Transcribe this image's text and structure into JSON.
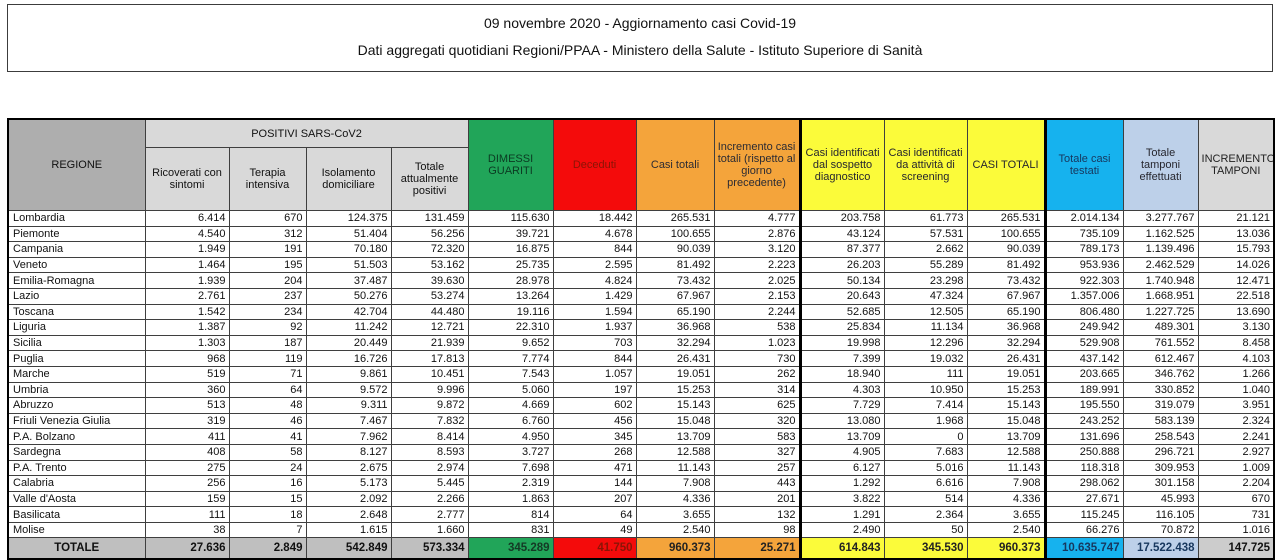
{
  "title": {
    "line1": "09 novembre 2020 - Aggiornamento casi Covid-19",
    "line2": "Dati aggregati quotidiani Regioni/PPAA - Ministero della Salute - Istituto Superiore di Sanità"
  },
  "table": {
    "headers": {
      "regione": "REGIONE",
      "positivi_group": "POSITIVI SARS-CoV2",
      "sub": [
        "Ricoverati con sintomi",
        "Terapia intensiva",
        "Isolamento domiciliare",
        "Totale attualmente positivi"
      ],
      "dimessi_guariti": "DIMESSI GUARITI",
      "deceduti": "Deceduti",
      "casi_totali": "Casi totali",
      "incremento_casi": "Incremento casi totali (rispetto al giorno precedente)",
      "sospetto": "Casi identificati dal sospetto diagnostico",
      "screening": "Casi identificati da attività di screening",
      "casi_totali_caps": "CASI TOTALI",
      "casi_testati": "Totale casi testati",
      "tamponi": "Totale tamponi effettuati",
      "incremento_tamponi": "INCREMENTO TAMPONI"
    },
    "column_ids": [
      "ricoverati-con-sintomi",
      "terapia-intensiva",
      "isolamento-domiciliare",
      "totale-attualmente-positivi",
      "dimessi-guariti",
      "deceduti",
      "casi-totali",
      "incremento-casi-totali",
      "sospetto-diagnostico",
      "screening",
      "casi-totali-complessivi",
      "totale-casi-testati",
      "totale-tamponi",
      "incremento-tamponi"
    ],
    "rows": [
      {
        "region": "Lombardia",
        "values": [
          "6.414",
          "670",
          "124.375",
          "131.459",
          "115.630",
          "18.442",
          "265.531",
          "4.777",
          "203.758",
          "61.773",
          "265.531",
          "2.014.134",
          "3.277.767",
          "21.121"
        ]
      },
      {
        "region": "Piemonte",
        "values": [
          "4.540",
          "312",
          "51.404",
          "56.256",
          "39.721",
          "4.678",
          "100.655",
          "2.876",
          "43.124",
          "57.531",
          "100.655",
          "735.109",
          "1.162.525",
          "13.036"
        ]
      },
      {
        "region": "Campania",
        "values": [
          "1.949",
          "191",
          "70.180",
          "72.320",
          "16.875",
          "844",
          "90.039",
          "3.120",
          "87.377",
          "2.662",
          "90.039",
          "789.173",
          "1.139.496",
          "15.793"
        ]
      },
      {
        "region": "Veneto",
        "values": [
          "1.464",
          "195",
          "51.503",
          "53.162",
          "25.735",
          "2.595",
          "81.492",
          "2.223",
          "26.203",
          "55.289",
          "81.492",
          "953.936",
          "2.462.529",
          "14.026"
        ]
      },
      {
        "region": "Emilia-Romagna",
        "values": [
          "1.939",
          "204",
          "37.487",
          "39.630",
          "28.978",
          "4.824",
          "73.432",
          "2.025",
          "50.134",
          "23.298",
          "73.432",
          "922.303",
          "1.740.948",
          "12.471"
        ]
      },
      {
        "region": "Lazio",
        "values": [
          "2.761",
          "237",
          "50.276",
          "53.274",
          "13.264",
          "1.429",
          "67.967",
          "2.153",
          "20.643",
          "47.324",
          "67.967",
          "1.357.006",
          "1.668.951",
          "22.518"
        ]
      },
      {
        "region": "Toscana",
        "values": [
          "1.542",
          "234",
          "42.704",
          "44.480",
          "19.116",
          "1.594",
          "65.190",
          "2.244",
          "52.685",
          "12.505",
          "65.190",
          "806.480",
          "1.227.725",
          "13.690"
        ]
      },
      {
        "region": "Liguria",
        "values": [
          "1.387",
          "92",
          "11.242",
          "12.721",
          "22.310",
          "1.937",
          "36.968",
          "538",
          "25.834",
          "11.134",
          "36.968",
          "249.942",
          "489.301",
          "3.130"
        ]
      },
      {
        "region": "Sicilia",
        "values": [
          "1.303",
          "187",
          "20.449",
          "21.939",
          "9.652",
          "703",
          "32.294",
          "1.023",
          "19.998",
          "12.296",
          "32.294",
          "529.908",
          "761.552",
          "8.458"
        ]
      },
      {
        "region": "Puglia",
        "values": [
          "968",
          "119",
          "16.726",
          "17.813",
          "7.774",
          "844",
          "26.431",
          "730",
          "7.399",
          "19.032",
          "26.431",
          "437.142",
          "612.467",
          "4.103"
        ]
      },
      {
        "region": "Marche",
        "values": [
          "519",
          "71",
          "9.861",
          "10.451",
          "7.543",
          "1.057",
          "19.051",
          "262",
          "18.940",
          "111",
          "19.051",
          "203.665",
          "346.762",
          "1.266"
        ]
      },
      {
        "region": "Umbria",
        "values": [
          "360",
          "64",
          "9.572",
          "9.996",
          "5.060",
          "197",
          "15.253",
          "314",
          "4.303",
          "10.950",
          "15.253",
          "189.991",
          "330.852",
          "1.040"
        ]
      },
      {
        "region": "Abruzzo",
        "values": [
          "513",
          "48",
          "9.311",
          "9.872",
          "4.669",
          "602",
          "15.143",
          "625",
          "7.729",
          "7.414",
          "15.143",
          "195.550",
          "319.079",
          "3.951"
        ]
      },
      {
        "region": "Friuli Venezia Giulia",
        "values": [
          "319",
          "46",
          "7.467",
          "7.832",
          "6.760",
          "456",
          "15.048",
          "320",
          "13.080",
          "1.968",
          "15.048",
          "243.252",
          "583.139",
          "2.324"
        ]
      },
      {
        "region": "P.A. Bolzano",
        "values": [
          "411",
          "41",
          "7.962",
          "8.414",
          "4.950",
          "345",
          "13.709",
          "583",
          "13.709",
          "0",
          "13.709",
          "131.696",
          "258.543",
          "2.241"
        ]
      },
      {
        "region": "Sardegna",
        "values": [
          "408",
          "58",
          "8.127",
          "8.593",
          "3.727",
          "268",
          "12.588",
          "327",
          "4.905",
          "7.683",
          "12.588",
          "250.888",
          "296.721",
          "2.927"
        ]
      },
      {
        "region": "P.A. Trento",
        "values": [
          "275",
          "24",
          "2.675",
          "2.974",
          "7.698",
          "471",
          "11.143",
          "257",
          "6.127",
          "5.016",
          "11.143",
          "118.318",
          "309.953",
          "1.009"
        ]
      },
      {
        "region": "Calabria",
        "values": [
          "256",
          "16",
          "5.173",
          "5.445",
          "2.319",
          "144",
          "7.908",
          "443",
          "1.292",
          "6.616",
          "7.908",
          "298.062",
          "301.158",
          "2.204"
        ]
      },
      {
        "region": "Valle d'Aosta",
        "values": [
          "159",
          "15",
          "2.092",
          "2.266",
          "1.863",
          "207",
          "4.336",
          "201",
          "3.822",
          "514",
          "4.336",
          "27.671",
          "45.993",
          "670"
        ]
      },
      {
        "region": "Basilicata",
        "values": [
          "111",
          "18",
          "2.648",
          "2.777",
          "814",
          "64",
          "3.655",
          "132",
          "1.291",
          "2.364",
          "3.655",
          "115.245",
          "116.105",
          "731"
        ]
      },
      {
        "region": "Molise",
        "values": [
          "38",
          "7",
          "1.615",
          "1.660",
          "831",
          "49",
          "2.540",
          "98",
          "2.490",
          "50",
          "2.540",
          "66.276",
          "70.872",
          "1.016"
        ]
      }
    ],
    "total": {
      "label": "TOTALE",
      "values": [
        "27.636",
        "2.849",
        "542.849",
        "573.334",
        "345.289",
        "41.750",
        "960.373",
        "25.271",
        "614.843",
        "345.530",
        "960.373",
        "10.635.747",
        "17.522.438",
        "147.725"
      ]
    }
  },
  "colors": {
    "green": "#21a559",
    "red": "#f40b0b",
    "red_text": "#8a1406",
    "orange": "#f4a43b",
    "yellow": "#fbfb3a",
    "cyan": "#16b2ee",
    "light_blue": "#bdd0e9",
    "header_gray": "#d9d9d9",
    "regione_gray": "#aeaeae",
    "total_gray": "#bfbfbf",
    "navy_text": "#17375e"
  }
}
